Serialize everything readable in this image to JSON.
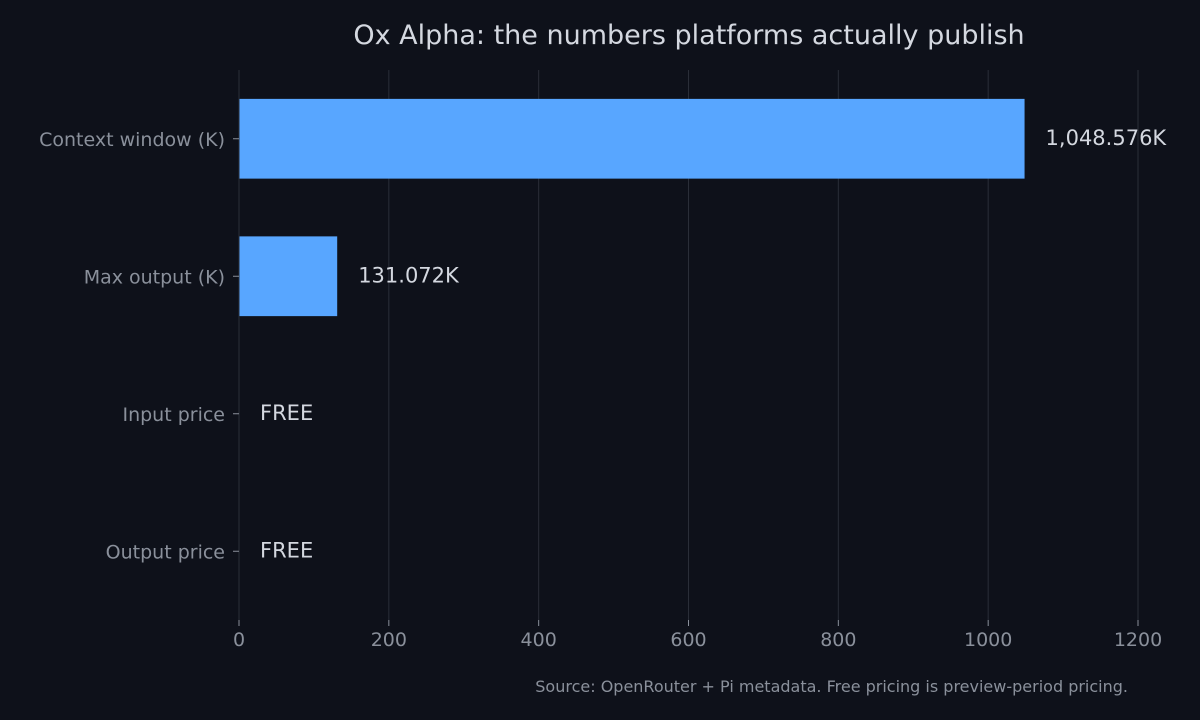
{
  "chart_data": {
    "type": "bar",
    "orientation": "horizontal",
    "title": "Ox Alpha: the numbers platforms actually publish",
    "xlabel": "",
    "ylabel": "",
    "categories": [
      "Context window (K)",
      "Max output (K)",
      "Input price",
      "Output price"
    ],
    "values": [
      1048.576,
      131.072,
      0,
      0
    ],
    "value_labels": [
      "1,048.576K",
      "131.072K",
      "FREE",
      "FREE"
    ],
    "xlim": [
      0,
      1200
    ],
    "xticks": [
      0,
      200,
      400,
      600,
      800,
      1000,
      1200
    ],
    "xtick_labels": [
      "0",
      "200",
      "400",
      "600",
      "800",
      "1000",
      "1200"
    ],
    "grid": "vertical",
    "bar_color": "#58a6ff",
    "source": "Source: OpenRouter + Pi metadata. Free pricing is preview-period pricing."
  },
  "colors": {
    "background": "#0e111a",
    "bar": "#58a6ff",
    "text_primary": "#d4d8e0",
    "text_secondary": "#8a909b",
    "grid": "#2a2e38"
  }
}
